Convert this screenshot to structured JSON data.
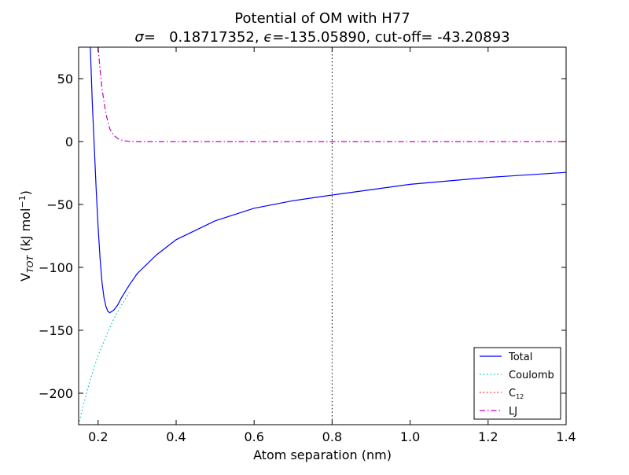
{
  "chart_data": {
    "type": "line",
    "title": "Potential of OM with H77",
    "subtitle": {
      "sigma_symbol": "σ",
      "sigma_text": "=   0.18717352, ",
      "epsilon_symbol": "ϵ",
      "epsilon_text": "=-135.05890, cut-off= -43.20893"
    },
    "xlabel": "Atom separation (nm)",
    "ylabel": {
      "prefix": "V",
      "subscript": "TOT",
      "unit_start": " (kJ mol",
      "superscript": "−1",
      "unit_end": ")"
    },
    "xlim": [
      0.15,
      1.4
    ],
    "ylim": [
      -225,
      75
    ],
    "xticks": [
      {
        "value": 0.2,
        "label": "0.2"
      },
      {
        "value": 0.4,
        "label": "0.4"
      },
      {
        "value": 0.6,
        "label": "0.6"
      },
      {
        "value": 0.8,
        "label": "0.8"
      },
      {
        "value": 1.0,
        "label": "1.0"
      },
      {
        "value": 1.2,
        "label": "1.2"
      },
      {
        "value": 1.4,
        "label": "1.4"
      }
    ],
    "yticks": [
      {
        "value": 50,
        "label": "50"
      },
      {
        "value": 0,
        "label": "0"
      },
      {
        "value": -50,
        "label": "−50"
      },
      {
        "value": -100,
        "label": "−100"
      },
      {
        "value": -150,
        "label": "−150"
      },
      {
        "value": -200,
        "label": "−200"
      }
    ],
    "cutoff_x": 0.8,
    "grid": false,
    "legend_position": "lower right",
    "series": [
      {
        "name": "Total",
        "color": "#0000ff",
        "style": "solid",
        "x": [
          0.18,
          0.185,
          0.19,
          0.195,
          0.2,
          0.205,
          0.21,
          0.215,
          0.22,
          0.225,
          0.23,
          0.235,
          0.24,
          0.25,
          0.26,
          0.28,
          0.3,
          0.35,
          0.4,
          0.5,
          0.6,
          0.7,
          0.8,
          1.0,
          1.2,
          1.4
        ],
        "y": [
          75,
          31,
          -3,
          -38,
          -68,
          -93,
          -112,
          -124,
          -131,
          -135,
          -136,
          -135,
          -134,
          -130,
          -124,
          -114,
          -105,
          -90,
          -78,
          -63,
          -53,
          -47,
          -42.5,
          -34,
          -28.5,
          -24.5
        ]
      },
      {
        "name": "Coulomb",
        "color": "#00bfbf",
        "style": "dotted",
        "x": [
          0.15,
          0.16,
          0.18,
          0.2,
          0.22,
          0.24,
          0.26,
          0.28
        ],
        "y": [
          -225,
          -212,
          -189,
          -170,
          -155,
          -141,
          -130,
          -120
        ]
      },
      {
        "name": "C",
        "name_subscript": "12",
        "color": "#ff0000",
        "style": "dotted",
        "x": [],
        "y": []
      },
      {
        "name": "LJ",
        "color": "#bf00bf",
        "style": "dashdot",
        "x": [
          0.2,
          0.205,
          0.21,
          0.22,
          0.23,
          0.24,
          0.25,
          0.26,
          0.27,
          0.28,
          0.3,
          0.35,
          0.4,
          0.6,
          0.8,
          1.0,
          1.2,
          1.4
        ],
        "y": [
          75,
          57,
          42,
          22,
          10,
          5,
          2.5,
          1.2,
          0.5,
          0.2,
          0,
          0,
          0,
          0,
          0,
          0,
          0,
          0
        ]
      }
    ]
  }
}
